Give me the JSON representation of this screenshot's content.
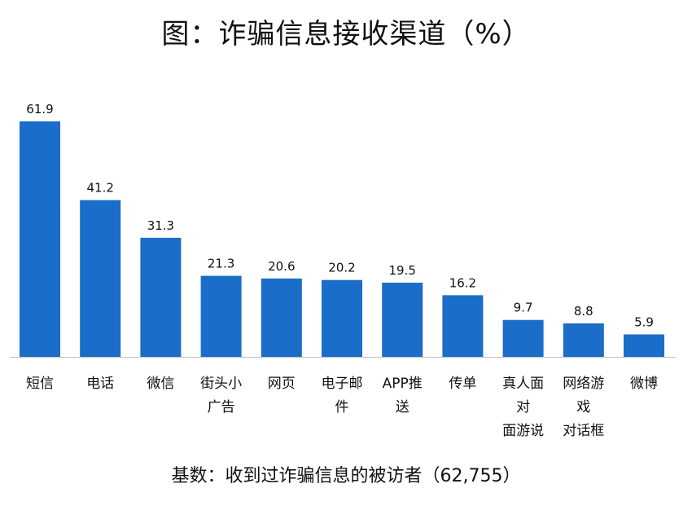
{
  "title": "图：诈骗信息接收渠道（%）",
  "footer": "基数：收到过诈骗信息的被访者（62,755）",
  "colors": {
    "bar": "#1a6dc8",
    "axis": "#bfbfbf",
    "text": "#111111"
  },
  "chart_data": {
    "type": "bar",
    "categories": [
      [
        "短信"
      ],
      [
        "电话"
      ],
      [
        "微信"
      ],
      [
        "街头小",
        "广告"
      ],
      [
        "网页"
      ],
      [
        "电子邮",
        "件"
      ],
      [
        "APP推",
        "送"
      ],
      [
        "传单"
      ],
      [
        "真人面",
        "对",
        "面游说"
      ],
      [
        "网络游",
        "戏",
        "对话框"
      ],
      [
        "微博"
      ]
    ],
    "values": [
      61.9,
      41.2,
      31.3,
      21.3,
      20.6,
      20.2,
      19.5,
      16.2,
      9.7,
      8.8,
      5.9
    ],
    "value_labels": [
      "61.9",
      "41.2",
      "31.3",
      "21.3",
      "20.6",
      "20.2",
      "19.5",
      "16.2",
      "9.7",
      "8.8",
      "5.9"
    ],
    "ylim": [
      0,
      61.9
    ],
    "grid": false,
    "legend": "none"
  }
}
